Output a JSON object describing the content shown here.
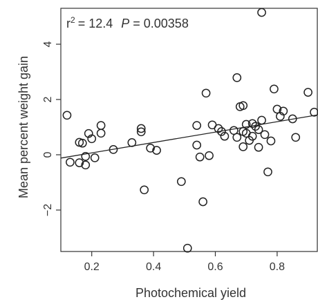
{
  "chart_data": {
    "type": "scatter",
    "title": "",
    "xlabel": "Photochemical yield",
    "ylabel": "Mean percent weight gain",
    "xlim": [
      0.1,
      0.93
    ],
    "ylim": [
      -3.5,
      5.3
    ],
    "xticks": [
      0.2,
      0.4,
      0.6,
      0.8
    ],
    "xtick_labels": [
      "0.2",
      "0.4",
      "0.6",
      "0.8"
    ],
    "yticks": [
      -2,
      0,
      2,
      4
    ],
    "ytick_labels": [
      "−2",
      "0",
      "2",
      "4"
    ],
    "grid": false,
    "annotation": {
      "r2_label": "r",
      "r2_superscript": "2",
      "r2_value": "= 12.4",
      "p_label": "P",
      "p_value": "= 0.00358"
    },
    "regression_line": {
      "x": [
        0.1,
        0.93
      ],
      "y": [
        -0.12,
        1.44
      ]
    },
    "points": [
      {
        "x": 0.12,
        "y": 1.43
      },
      {
        "x": 0.13,
        "y": -0.27
      },
      {
        "x": 0.16,
        "y": 0.45
      },
      {
        "x": 0.16,
        "y": -0.29
      },
      {
        "x": 0.17,
        "y": 0.42
      },
      {
        "x": 0.18,
        "y": -0.06
      },
      {
        "x": 0.18,
        "y": -0.37
      },
      {
        "x": 0.19,
        "y": 0.77
      },
      {
        "x": 0.2,
        "y": 0.58
      },
      {
        "x": 0.21,
        "y": -0.11
      },
      {
        "x": 0.23,
        "y": 1.06
      },
      {
        "x": 0.23,
        "y": 0.78
      },
      {
        "x": 0.27,
        "y": 0.19
      },
      {
        "x": 0.33,
        "y": 0.44
      },
      {
        "x": 0.36,
        "y": 0.95
      },
      {
        "x": 0.36,
        "y": 0.83
      },
      {
        "x": 0.37,
        "y": -1.27
      },
      {
        "x": 0.39,
        "y": 0.24
      },
      {
        "x": 0.41,
        "y": 0.16
      },
      {
        "x": 0.49,
        "y": -0.97
      },
      {
        "x": 0.51,
        "y": -3.38
      },
      {
        "x": 0.54,
        "y": 1.06
      },
      {
        "x": 0.54,
        "y": 0.35
      },
      {
        "x": 0.55,
        "y": -0.08
      },
      {
        "x": 0.56,
        "y": -1.7
      },
      {
        "x": 0.57,
        "y": 2.23
      },
      {
        "x": 0.58,
        "y": -0.03
      },
      {
        "x": 0.59,
        "y": 1.08
      },
      {
        "x": 0.61,
        "y": 0.95
      },
      {
        "x": 0.62,
        "y": 0.84
      },
      {
        "x": 0.63,
        "y": 0.67
      },
      {
        "x": 0.66,
        "y": 0.88
      },
      {
        "x": 0.67,
        "y": 2.79
      },
      {
        "x": 0.67,
        "y": 0.63
      },
      {
        "x": 0.68,
        "y": 1.74
      },
      {
        "x": 0.69,
        "y": 1.78
      },
      {
        "x": 0.69,
        "y": 0.84
      },
      {
        "x": 0.69,
        "y": 0.29
      },
      {
        "x": 0.7,
        "y": 0.78
      },
      {
        "x": 0.7,
        "y": 1.1
      },
      {
        "x": 0.71,
        "y": 0.52
      },
      {
        "x": 0.72,
        "y": 1.13
      },
      {
        "x": 0.72,
        "y": 0.67
      },
      {
        "x": 0.73,
        "y": 1.03
      },
      {
        "x": 0.74,
        "y": 0.27
      },
      {
        "x": 0.74,
        "y": 0.91
      },
      {
        "x": 0.75,
        "y": 1.25
      },
      {
        "x": 0.75,
        "y": 5.15
      },
      {
        "x": 0.76,
        "y": 0.73
      },
      {
        "x": 0.77,
        "y": -0.62
      },
      {
        "x": 0.78,
        "y": 0.5
      },
      {
        "x": 0.79,
        "y": 2.38
      },
      {
        "x": 0.8,
        "y": 1.65
      },
      {
        "x": 0.81,
        "y": 1.39
      },
      {
        "x": 0.82,
        "y": 1.58
      },
      {
        "x": 0.85,
        "y": 1.3
      },
      {
        "x": 0.86,
        "y": 0.63
      },
      {
        "x": 0.9,
        "y": 2.26
      },
      {
        "x": 0.92,
        "y": 1.54
      }
    ]
  }
}
